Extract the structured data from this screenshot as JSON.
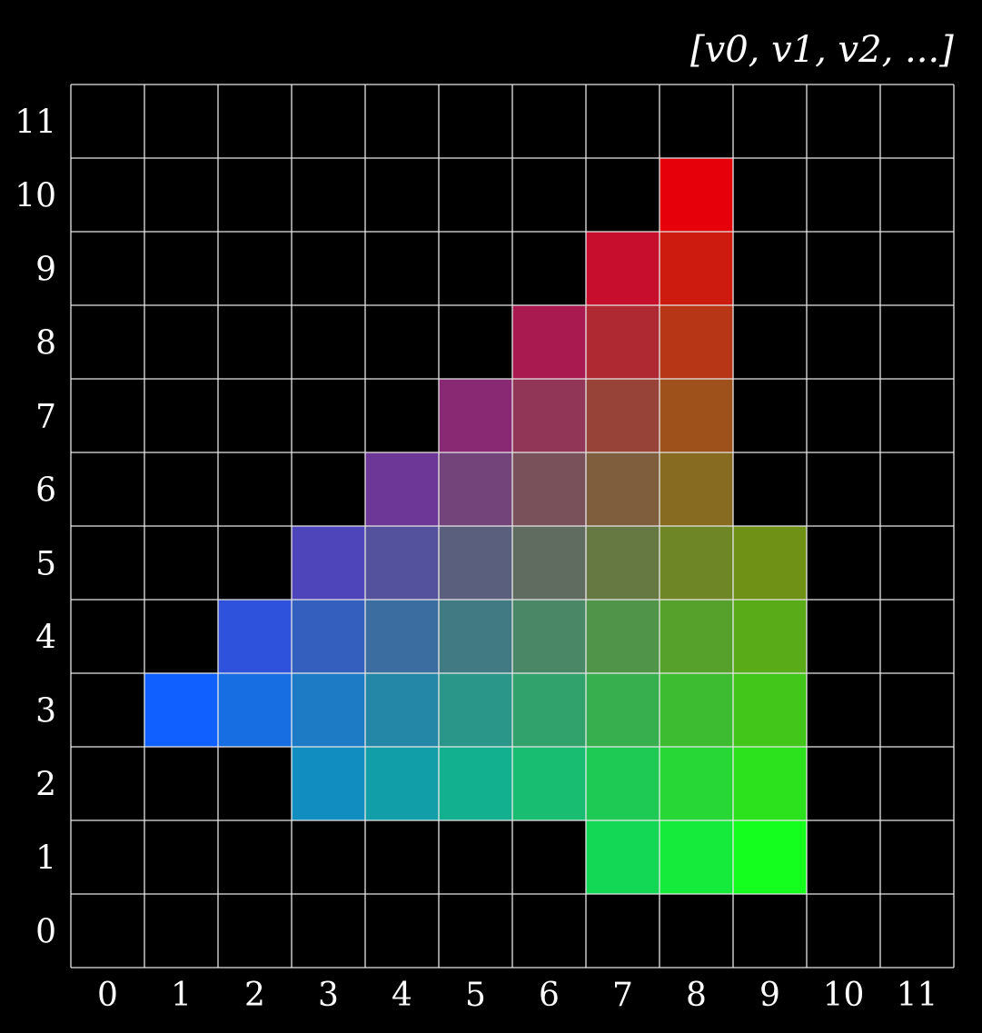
{
  "title": "[v0, v1, v2, ...]",
  "grid": {
    "cols": 12,
    "rows": 12,
    "x_ticks": [
      "0",
      "1",
      "2",
      "3",
      "4",
      "5",
      "6",
      "7",
      "8",
      "9",
      "10",
      "11"
    ],
    "y_ticks": [
      "0",
      "1",
      "2",
      "3",
      "4",
      "5",
      "6",
      "7",
      "8",
      "9",
      "10",
      "11"
    ],
    "line_color": "#e6e6e6",
    "background": "#000000"
  },
  "triangle": {
    "vertices": [
      {
        "name": "v-blue",
        "x": 1,
        "y": 3,
        "color": [
          16,
          96,
          255
        ]
      },
      {
        "name": "v-red",
        "x": 8,
        "y": 10,
        "color": [
          230,
          0,
          10
        ]
      },
      {
        "name": "v-green",
        "x": 9,
        "y": 1,
        "color": [
          20,
          255,
          30
        ]
      }
    ]
  },
  "chart_data": {
    "type": "heatmap",
    "title": "[v0, v1, v2, ...]",
    "x_range": [
      0,
      11
    ],
    "y_range": [
      0,
      11
    ],
    "grid": true,
    "filled_rows": [
      {
        "y": 10,
        "x_from": 8,
        "x_to": 8
      },
      {
        "y": 9,
        "x_from": 7,
        "x_to": 8
      },
      {
        "y": 8,
        "x_from": 6,
        "x_to": 8
      },
      {
        "y": 7,
        "x_from": 5,
        "x_to": 8
      },
      {
        "y": 6,
        "x_from": 4,
        "x_to": 8
      },
      {
        "y": 5,
        "x_from": 3,
        "x_to": 9
      },
      {
        "y": 4,
        "x_from": 2,
        "x_to": 9
      },
      {
        "y": 3,
        "x_from": 1,
        "x_to": 9
      },
      {
        "y": 2,
        "x_from": 3,
        "x_to": 9
      },
      {
        "y": 1,
        "x_from": 7,
        "x_to": 9
      }
    ]
  }
}
